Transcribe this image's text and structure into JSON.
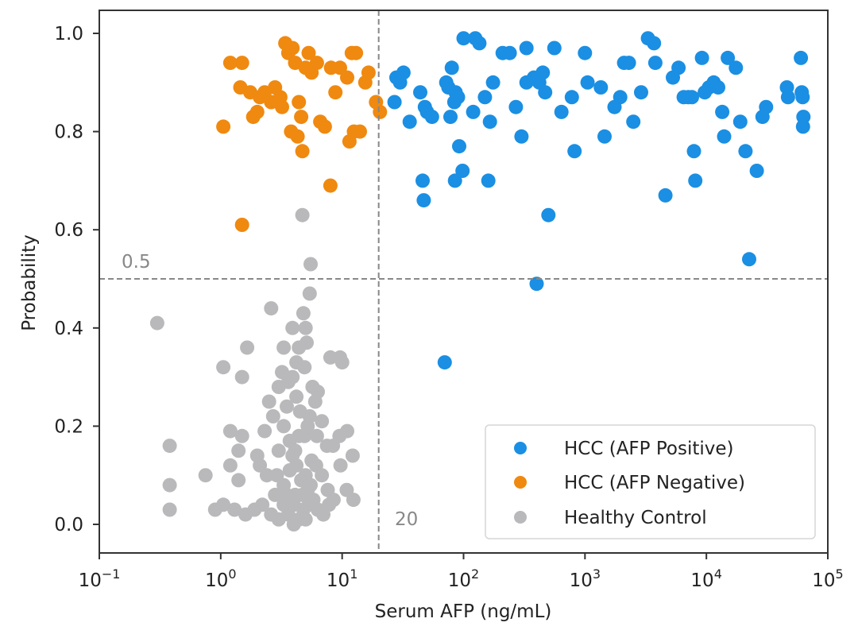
{
  "chart_data": {
    "type": "scatter",
    "title": "",
    "xlabel": "Serum AFP (ng/mL)",
    "ylabel": "Probability",
    "xscale": "log",
    "xlim": [
      0.1,
      100000
    ],
    "ylim": [
      -0.06,
      1.04
    ],
    "x_ticks": [
      {
        "value": 0.1,
        "base": "10",
        "exp": "−1"
      },
      {
        "value": 1,
        "base": "10",
        "exp": "0"
      },
      {
        "value": 10,
        "base": "10",
        "exp": "1"
      },
      {
        "value": 100,
        "base": "10",
        "exp": "2"
      },
      {
        "value": 1000,
        "base": "10",
        "exp": "3"
      },
      {
        "value": 10000,
        "base": "10",
        "exp": "4"
      },
      {
        "value": 100000,
        "base": "10",
        "exp": "5"
      }
    ],
    "y_ticks": [
      {
        "value": 0.0,
        "label": "0.0"
      },
      {
        "value": 0.2,
        "label": "0.2"
      },
      {
        "value": 0.4,
        "label": "0.4"
      },
      {
        "value": 0.6,
        "label": "0.6"
      },
      {
        "value": 0.8,
        "label": "0.8"
      },
      {
        "value": 1.0,
        "label": "1.0"
      }
    ],
    "grid": false,
    "legend_position": "lower-right",
    "reference_lines": [
      {
        "orientation": "horizontal",
        "value": 0.5,
        "label": "0.5",
        "color": "#888888"
      },
      {
        "orientation": "vertical",
        "value": 20,
        "label": "20",
        "color": "#888888"
      }
    ],
    "series": [
      {
        "name": "HCC (AFP Positive)",
        "color": "#1a8fe3",
        "points": [
          [
            28,
            0.91
          ],
          [
            32,
            0.92
          ],
          [
            30,
            0.9
          ],
          [
            27,
            0.86
          ],
          [
            36,
            0.82
          ],
          [
            44,
            0.88
          ],
          [
            48,
            0.85
          ],
          [
            50,
            0.84
          ],
          [
            55,
            0.83
          ],
          [
            46,
            0.7
          ],
          [
            47,
            0.66
          ],
          [
            72,
            0.9
          ],
          [
            75,
            0.89
          ],
          [
            78,
            0.83
          ],
          [
            80,
            0.93
          ],
          [
            84,
            0.86
          ],
          [
            86,
            0.88
          ],
          [
            90,
            0.87
          ],
          [
            92,
            0.77
          ],
          [
            100,
            0.99
          ],
          [
            98,
            0.72
          ],
          [
            85,
            0.7
          ],
          [
            125,
            0.99
          ],
          [
            135,
            0.98
          ],
          [
            120,
            0.84
          ],
          [
            150,
            0.87
          ],
          [
            165,
            0.82
          ],
          [
            175,
            0.9
          ],
          [
            160,
            0.7
          ],
          [
            210,
            0.96
          ],
          [
            240,
            0.96
          ],
          [
            270,
            0.85
          ],
          [
            300,
            0.79
          ],
          [
            330,
            0.97
          ],
          [
            330,
            0.9
          ],
          [
            380,
            0.91
          ],
          [
            420,
            0.9
          ],
          [
            450,
            0.92
          ],
          [
            470,
            0.88
          ],
          [
            500,
            0.63
          ],
          [
            560,
            0.97
          ],
          [
            640,
            0.84
          ],
          [
            780,
            0.87
          ],
          [
            820,
            0.76
          ],
          [
            1000,
            0.96
          ],
          [
            1050,
            0.9
          ],
          [
            1350,
            0.89
          ],
          [
            1450,
            0.79
          ],
          [
            1750,
            0.85
          ],
          [
            1950,
            0.87
          ],
          [
            2100,
            0.94
          ],
          [
            2300,
            0.94
          ],
          [
            2500,
            0.82
          ],
          [
            2900,
            0.88
          ],
          [
            3300,
            0.99
          ],
          [
            3700,
            0.98
          ],
          [
            3800,
            0.94
          ],
          [
            4600,
            0.67
          ],
          [
            5300,
            0.91
          ],
          [
            5900,
            0.93
          ],
          [
            6500,
            0.87
          ],
          [
            7100,
            0.87
          ],
          [
            7600,
            0.87
          ],
          [
            7900,
            0.76
          ],
          [
            8100,
            0.7
          ],
          [
            9200,
            0.95
          ],
          [
            9700,
            0.88
          ],
          [
            10500,
            0.89
          ],
          [
            11500,
            0.9
          ],
          [
            12500,
            0.89
          ],
          [
            13500,
            0.84
          ],
          [
            14000,
            0.79
          ],
          [
            15000,
            0.95
          ],
          [
            17500,
            0.93
          ],
          [
            19000,
            0.82
          ],
          [
            21000,
            0.76
          ],
          [
            26000,
            0.72
          ],
          [
            29000,
            0.83
          ],
          [
            31000,
            0.85
          ],
          [
            46000,
            0.89
          ],
          [
            47000,
            0.87
          ],
          [
            60000,
            0.95
          ],
          [
            61000,
            0.88
          ],
          [
            62000,
            0.87
          ],
          [
            63000,
            0.83
          ],
          [
            62500,
            0.81
          ],
          [
            22500,
            0.54
          ],
          [
            400,
            0.49
          ],
          [
            70,
            0.33
          ]
        ]
      },
      {
        "name": "HCC (AFP Negative)",
        "color": "#f0890f",
        "points": [
          [
            1.05,
            0.81
          ],
          [
            1.2,
            0.94
          ],
          [
            1.5,
            0.94
          ],
          [
            1.45,
            0.89
          ],
          [
            1.75,
            0.88
          ],
          [
            1.85,
            0.83
          ],
          [
            2.1,
            0.87
          ],
          [
            2.3,
            0.88
          ],
          [
            2.6,
            0.86
          ],
          [
            2.8,
            0.89
          ],
          [
            3.1,
            0.87
          ],
          [
            3.4,
            0.98
          ],
          [
            3.2,
            0.85
          ],
          [
            3.6,
            0.96
          ],
          [
            3.9,
            0.97
          ],
          [
            4.1,
            0.94
          ],
          [
            4.4,
            0.86
          ],
          [
            4.6,
            0.83
          ],
          [
            4.3,
            0.79
          ],
          [
            4.7,
            0.76
          ],
          [
            5.0,
            0.93
          ],
          [
            5.3,
            0.96
          ],
          [
            5.6,
            0.92
          ],
          [
            6.2,
            0.94
          ],
          [
            6.6,
            0.82
          ],
          [
            7.2,
            0.81
          ],
          [
            8.1,
            0.93
          ],
          [
            8.8,
            0.88
          ],
          [
            9.6,
            0.93
          ],
          [
            11.0,
            0.91
          ],
          [
            12.0,
            0.96
          ],
          [
            13.0,
            0.96
          ],
          [
            11.5,
            0.78
          ],
          [
            12.5,
            0.8
          ],
          [
            14.0,
            0.8
          ],
          [
            15.5,
            0.9
          ],
          [
            16.5,
            0.92
          ],
          [
            19.0,
            0.86
          ],
          [
            20.5,
            0.84
          ],
          [
            8.0,
            0.69
          ],
          [
            1.5,
            0.61
          ],
          [
            3.8,
            0.8
          ],
          [
            2.0,
            0.84
          ]
        ]
      },
      {
        "name": "Healthy Control",
        "color": "#b9b9bb",
        "points": [
          [
            0.3,
            0.41
          ],
          [
            0.38,
            0.16
          ],
          [
            0.38,
            0.08
          ],
          [
            0.38,
            0.03
          ],
          [
            4.7,
            0.63
          ],
          [
            5.5,
            0.53
          ],
          [
            5.4,
            0.47
          ],
          [
            2.6,
            0.44
          ],
          [
            4.8,
            0.43
          ],
          [
            5.0,
            0.4
          ],
          [
            3.9,
            0.4
          ],
          [
            4.4,
            0.36
          ],
          [
            3.3,
            0.36
          ],
          [
            1.65,
            0.36
          ],
          [
            1.5,
            0.3
          ],
          [
            1.05,
            0.32
          ],
          [
            5.1,
            0.37
          ],
          [
            4.9,
            0.32
          ],
          [
            4.2,
            0.33
          ],
          [
            3.9,
            0.3
          ],
          [
            3.6,
            0.29
          ],
          [
            3.2,
            0.31
          ],
          [
            5.7,
            0.28
          ],
          [
            6.0,
            0.25
          ],
          [
            6.3,
            0.27
          ],
          [
            5.4,
            0.22
          ],
          [
            6.8,
            0.21
          ],
          [
            8.0,
            0.34
          ],
          [
            9.6,
            0.34
          ],
          [
            10.0,
            0.33
          ],
          [
            1.2,
            0.19
          ],
          [
            1.5,
            0.18
          ],
          [
            1.4,
            0.15
          ],
          [
            0.75,
            0.1
          ],
          [
            1.2,
            0.12
          ],
          [
            1.4,
            0.09
          ],
          [
            2.5,
            0.25
          ],
          [
            2.3,
            0.19
          ],
          [
            2.7,
            0.22
          ],
          [
            3.0,
            0.28
          ],
          [
            3.3,
            0.2
          ],
          [
            3.7,
            0.17
          ],
          [
            4.1,
            0.15
          ],
          [
            4.5,
            0.23
          ],
          [
            4.9,
            0.18
          ],
          [
            5.2,
            0.2
          ],
          [
            6.2,
            0.18
          ],
          [
            7.5,
            0.16
          ],
          [
            8.4,
            0.16
          ],
          [
            9.5,
            0.18
          ],
          [
            11.0,
            0.19
          ],
          [
            12.2,
            0.14
          ],
          [
            9.7,
            0.12
          ],
          [
            10.9,
            0.07
          ],
          [
            12.4,
            0.05
          ],
          [
            2.1,
            0.12
          ],
          [
            2.4,
            0.1
          ],
          [
            2.0,
            0.14
          ],
          [
            2.9,
            0.1
          ],
          [
            3.3,
            0.08
          ],
          [
            3.7,
            0.11
          ],
          [
            4.2,
            0.12
          ],
          [
            4.6,
            0.09
          ],
          [
            5.0,
            0.1
          ],
          [
            5.5,
            0.08
          ],
          [
            6.1,
            0.12
          ],
          [
            6.8,
            0.1
          ],
          [
            7.6,
            0.07
          ],
          [
            8.5,
            0.05
          ],
          [
            1.05,
            0.04
          ],
          [
            0.9,
            0.03
          ],
          [
            1.3,
            0.03
          ],
          [
            1.6,
            0.02
          ],
          [
            1.9,
            0.03
          ],
          [
            2.2,
            0.04
          ],
          [
            2.6,
            0.02
          ],
          [
            3.0,
            0.01
          ],
          [
            3.3,
            0.04
          ],
          [
            3.6,
            0.02
          ],
          [
            4.0,
            0.0
          ],
          [
            4.4,
            0.01
          ],
          [
            4.8,
            0.03
          ],
          [
            5.3,
            0.04
          ],
          [
            5.8,
            0.05
          ],
          [
            6.3,
            0.03
          ],
          [
            7.0,
            0.02
          ],
          [
            7.8,
            0.04
          ],
          [
            3.5,
            0.06
          ],
          [
            4.1,
            0.06
          ],
          [
            4.7,
            0.06
          ],
          [
            5.2,
            0.07
          ],
          [
            2.8,
            0.06
          ],
          [
            3.9,
            0.14
          ],
          [
            4.4,
            0.18
          ],
          [
            3.0,
            0.15
          ],
          [
            3.5,
            0.24
          ],
          [
            4.2,
            0.26
          ],
          [
            5.6,
            0.13
          ],
          [
            4.0,
            0.04
          ],
          [
            5.0,
            0.01
          ]
        ]
      }
    ]
  }
}
